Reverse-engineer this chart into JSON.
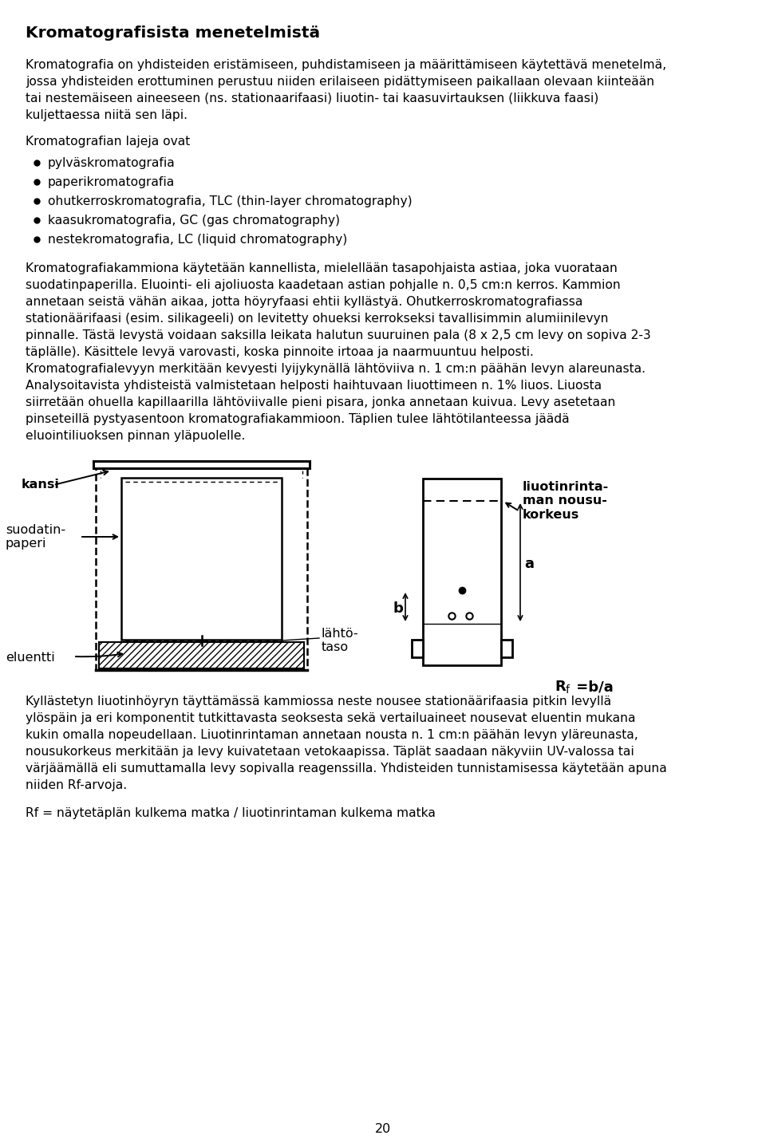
{
  "title": "Kromatografisista menetelmistä",
  "background_color": "#ffffff",
  "text_color": "#000000",
  "font_family": "DejaVu Sans",
  "page_number": "20",
  "paragraph1_lines": [
    "Kromatografia on yhdisteiden eristämiseen, puhdistamiseen ja määrittämiseen käytettävä menetelmä,",
    "jossa yhdisteiden erottuminen perustuu niiden erilaiseen pidättymiseen paikallaan olevaan kiinteään",
    "tai nestemäiseen aineeseen (ns. stationaarifaasi) liuotin- tai kaasuvirtauksen (liikkuva faasi)",
    "kuljettaessa niitä sen läpi."
  ],
  "section_header": "Kromatografian lajeja ovat",
  "bullet_points": [
    "pylväskromatografia",
    "paperikromatografia",
    "ohutkerroskromatografia, TLC (thin-layer chromatography)",
    "kaasukromatografia, GC (gas chromatography)",
    "nestekromatografia, LC (liquid chromatography)"
  ],
  "paragraph2_lines": [
    "Kromatografiakammiona käytetään kannellista, mielellään tasapohjaista astiaa, joka vuorataan",
    "suodatinpaperilla. Eluointi- eli ajoliuosta kaadetaan astian pohjalle n. 0,5 cm:n kerros. Kammion",
    "annetaan seistä vähän aikaa, jotta höyryfaasi ehtii kyllästyä. Ohutkerroskromatografiassa",
    "stationäärifaasi (esim. silikageeli) on levitetty ohueksi kerrokseksi tavallisimmin alumiinilevyn",
    "pinnalle. Tästä levystä voidaan saksilla leikata halutun suuruinen pala (8 x 2,5 cm levy on sopiva 2-3",
    "täplälle). Käsittele levyä varovasti, koska pinnoite irtoaa ja naarmuuntuu helposti.",
    "Kromatografialevyyn merkitään kevyesti lyijykynällä lähtöviiva n. 1 cm:n päähän levyn alareunasta.",
    "Analysoitavista yhdisteistä valmistetaan helposti haihtuvaan liuottimeen n. 1% liuos. Liuosta",
    "siirretään ohuella kapillaarilla lähtöviivalle pieni pisara, jonka annetaan kuivua. Levy asetetaan",
    "pinseteillä pystyasentoon kromatografiakammioon. Täplien tulee lähtötilanteessa jäädä",
    "eluointiliuoksen pinnan yläpuolelle."
  ],
  "paragraph3_lines": [
    "Kyllästetyn liuotinhöyryn täyttämässä kammiossa neste nousee stationäärifaasia pitkin levyllä",
    "ylöspäin ja eri komponentit tutkittavasta seoksesta sekä vertailuaineet nousevat eluentin mukana",
    "kukin omalla nopeudellaan. Liuotinrintaman annetaan nousta n. 1 cm:n päähän levyn yläreunasta,",
    "nousukorkeus merkitään ja levy kuivatetaan vetokaapissa. Täplät saadaan näkyviin UV-valossa tai",
    "värjäämällä eli sumuttamalla levy sopivalla reagenssilla. Yhdisteiden tunnistamisessa käytetään apuna",
    "niiden Rf-arvoja."
  ],
  "rf_formula": "Rf = näytetäplän kulkema matka / liuotinrintaman kulkema matka"
}
